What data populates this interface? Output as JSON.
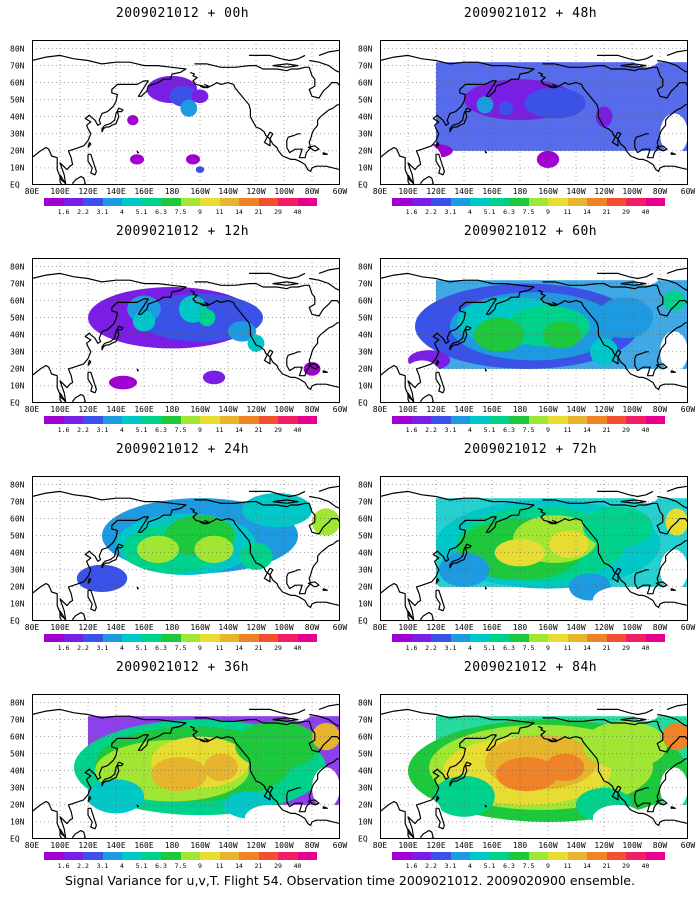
{
  "panels": [
    {
      "title": "2009021012 + 00h",
      "level": 0
    },
    {
      "title": "2009021012 + 48h",
      "level": 4
    },
    {
      "title": "2009021012 + 12h",
      "level": 1
    },
    {
      "title": "2009021012 + 60h",
      "level": 5
    },
    {
      "title": "2009021012 + 24h",
      "level": 2
    },
    {
      "title": "2009021012 + 72h",
      "level": 6
    },
    {
      "title": "2009021012 + 36h",
      "level": 3
    },
    {
      "title": "2009021012 + 84h",
      "level": 7
    }
  ],
  "lat_labels": [
    "80N",
    "70N",
    "60N",
    "50N",
    "40N",
    "30N",
    "20N",
    "10N",
    "EQ"
  ],
  "lon_labels": [
    "80E",
    "100E",
    "120E",
    "140E",
    "160E",
    "180",
    "160W",
    "140W",
    "120W",
    "100W",
    "80W",
    "60W"
  ],
  "colorbar": {
    "labels": [
      "1.6",
      "2.2",
      "3.1",
      "4",
      "5.1",
      "6.3",
      "7.5",
      "9",
      "11",
      "14",
      "21",
      "29",
      "40"
    ],
    "colors": [
      "#a000d2",
      "#7a1ee6",
      "#3a52e8",
      "#1e9ae0",
      "#00c8c8",
      "#00d28c",
      "#1ec83c",
      "#a0e632",
      "#e6dc32",
      "#e6b42d",
      "#f08228",
      "#f0502d",
      "#f01e64",
      "#e6008c"
    ]
  },
  "caption": "Signal Variance for u,v,T. Flight 54. Observation time 2009021012. 2009020900 ensemble."
}
